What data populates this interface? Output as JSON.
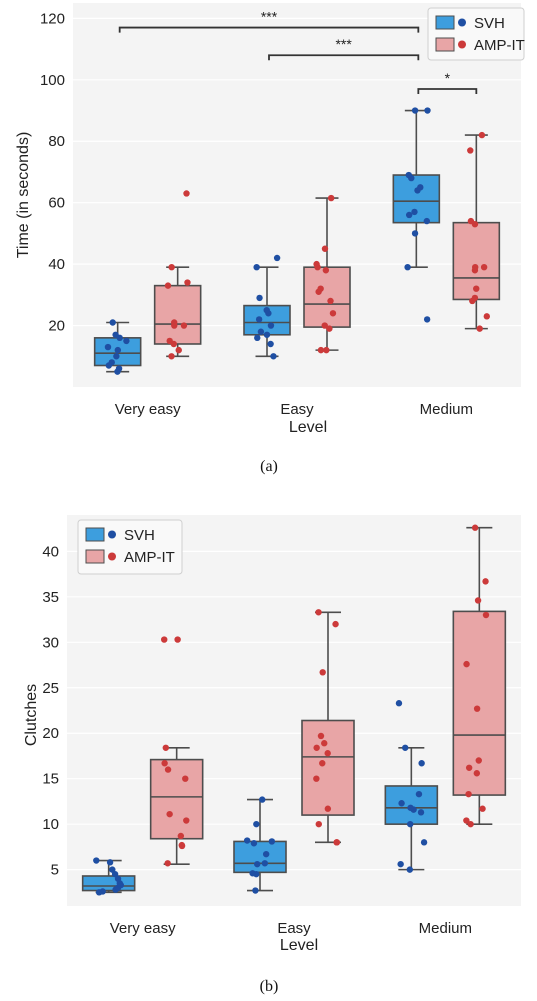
{
  "colors": {
    "svh_box": "#3d9ede",
    "svh_point": "#1f4fa3",
    "amp_box": "#e8a5a6",
    "amp_point": "#cc3a3a",
    "plot_bg": "#f4f4f4",
    "line": "#4d4d4d"
  },
  "chart_data": [
    {
      "type": "box",
      "caption": "(a)",
      "xlabel": "Level",
      "ylabel": "Time (in seconds)",
      "ylim": [
        0,
        125
      ],
      "yticks": [
        20,
        40,
        60,
        80,
        100,
        120
      ],
      "grid": true,
      "legend_position": "top-right",
      "categories": [
        "Very easy",
        "Easy",
        "Medium"
      ],
      "series": [
        {
          "name": "SVH",
          "boxes": [
            {
              "whislo": 5,
              "q1": 7,
              "med": 11,
              "q3": 16,
              "whishi": 21
            },
            {
              "whislo": 10,
              "q1": 17,
              "med": 21,
              "q3": 26.5,
              "whishi": 39
            },
            {
              "whislo": 39,
              "q1": 53.5,
              "med": 60.5,
              "q3": 69,
              "whishi": 90
            }
          ],
          "points": [
            [
              5,
              6,
              7,
              8,
              10,
              12,
              13,
              15,
              16,
              17,
              21
            ],
            [
              10,
              14,
              16,
              17,
              18,
              20,
              22,
              24,
              25,
              29,
              39,
              42
            ],
            [
              22,
              39,
              50,
              54,
              56,
              57,
              64,
              65,
              68,
              69,
              90,
              90
            ]
          ],
          "fliers": [
            [],
            [
              42
            ],
            [
              22
            ]
          ]
        },
        {
          "name": "AMP-IT",
          "boxes": [
            {
              "whislo": 10,
              "q1": 14,
              "med": 20.5,
              "q3": 33,
              "whishi": 39
            },
            {
              "whislo": 12,
              "q1": 19.5,
              "med": 27,
              "q3": 39,
              "whishi": 61.5
            },
            {
              "whislo": 19,
              "q1": 28.5,
              "med": 35.5,
              "q3": 53.5,
              "whishi": 82
            }
          ],
          "points": [
            [
              10,
              12,
              14,
              15,
              20,
              20,
              21,
              33,
              34,
              39,
              63
            ],
            [
              12,
              12,
              19,
              20,
              24,
              28,
              31,
              32,
              38,
              39,
              40,
              45,
              61.5
            ],
            [
              19,
              23,
              28,
              29,
              32,
              38,
              39,
              39,
              53,
              54,
              77,
              82
            ]
          ],
          "fliers": [
            [
              63
            ],
            [],
            []
          ]
        }
      ],
      "significance": [
        {
          "from": "Very easy",
          "to": "Medium",
          "label": "***",
          "y": 117
        },
        {
          "from": "Easy",
          "to": "Medium",
          "label": "***",
          "y": 108
        },
        {
          "from": "Medium-SVH",
          "to": "Medium-AMP-IT",
          "label": "*",
          "y": 97
        }
      ]
    },
    {
      "type": "box",
      "caption": "(b)",
      "xlabel": "Level",
      "ylabel": "Clutches",
      "ylim": [
        1,
        44
      ],
      "yticks": [
        5,
        10,
        15,
        20,
        25,
        30,
        35,
        40
      ],
      "grid": true,
      "legend_position": "top-left",
      "categories": [
        "Very easy",
        "Easy",
        "Medium"
      ],
      "series": [
        {
          "name": "SVH",
          "boxes": [
            {
              "whislo": 2.5,
              "q1": 2.7,
              "med": 3.2,
              "q3": 4.3,
              "whishi": 6
            },
            {
              "whislo": 2.7,
              "q1": 4.7,
              "med": 5.7,
              "q3": 8.1,
              "whishi": 12.7
            },
            {
              "whislo": 5,
              "q1": 10,
              "med": 11.8,
              "q3": 14.2,
              "whishi": 18.4
            }
          ],
          "points": [
            [
              2.5,
              2.6,
              2.8,
              3.0,
              3.3,
              3.5,
              4.0,
              4.5,
              5.0,
              5.8,
              6.0
            ],
            [
              2.7,
              4.5,
              4.6,
              5.6,
              5.7,
              6.7,
              7.9,
              8.1,
              8.2,
              10.0,
              12.7
            ],
            [
              5.0,
              5.6,
              8.0,
              10.0,
              11.3,
              11.6,
              11.8,
              12.3,
              13.3,
              16.7,
              18.4,
              23.3
            ]
          ],
          "fliers": [
            [],
            [],
            [
              23.3
            ]
          ]
        },
        {
          "name": "AMP-IT",
          "boxes": [
            {
              "whislo": 5.6,
              "q1": 8.4,
              "med": 13.0,
              "q3": 17.1,
              "whishi": 18.4
            },
            {
              "whislo": 8.0,
              "q1": 11.0,
              "med": 17.4,
              "q3": 21.4,
              "whishi": 33.3
            },
            {
              "whislo": 10.0,
              "q1": 13.2,
              "med": 19.8,
              "q3": 33.4,
              "whishi": 42.6
            }
          ],
          "points": [
            [
              5.7,
              7.6,
              7.7,
              8.7,
              10.4,
              11.1,
              15.0,
              16.0,
              16.7,
              18.4,
              30.3,
              30.3
            ],
            [
              8.0,
              8.0,
              10.0,
              11.7,
              15.0,
              16.7,
              17.8,
              18.4,
              18.9,
              19.7,
              26.7,
              32.0,
              33.3
            ],
            [
              10.0,
              10.4,
              11.7,
              13.3,
              15.6,
              16.2,
              17.0,
              22.7,
              27.6,
              33.0,
              34.6,
              36.7,
              42.6
            ]
          ],
          "fliers": [
            [
              30.3,
              30.3
            ],
            [],
            []
          ]
        }
      ]
    }
  ]
}
